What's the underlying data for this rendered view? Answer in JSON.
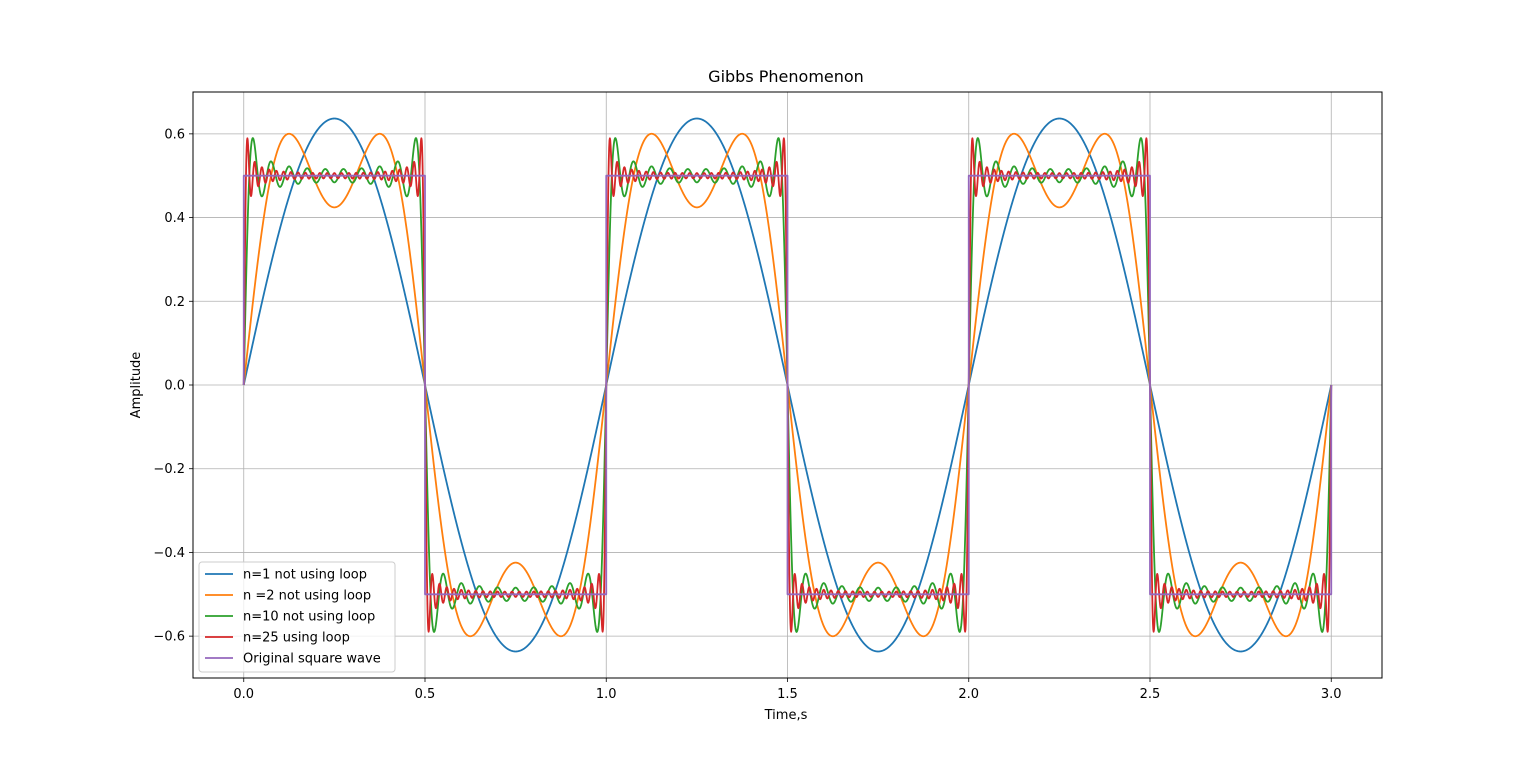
{
  "chart_data": {
    "type": "line",
    "title": "Gibbs Phenomenon",
    "xlabel": "Time,s",
    "ylabel": "Amplitude",
    "xlim": [
      -0.14,
      3.14
    ],
    "ylim": [
      -0.7,
      0.7
    ],
    "grid": true,
    "legend_position": "lower-left",
    "x_ticks": [
      {
        "value": 0.0,
        "label": "0.0"
      },
      {
        "value": 0.5,
        "label": "0.5"
      },
      {
        "value": 1.0,
        "label": "1.0"
      },
      {
        "value": 1.5,
        "label": "1.5"
      },
      {
        "value": 2.0,
        "label": "2.0"
      },
      {
        "value": 2.5,
        "label": "2.5"
      },
      {
        "value": 3.0,
        "label": "3.0"
      }
    ],
    "y_ticks": [
      {
        "value": -0.6,
        "label": "−0.6"
      },
      {
        "value": -0.4,
        "label": "−0.4"
      },
      {
        "value": -0.2,
        "label": "−0.2"
      },
      {
        "value": 0.0,
        "label": "0.0"
      },
      {
        "value": 0.2,
        "label": "0.2"
      },
      {
        "value": 0.4,
        "label": "0.4"
      },
      {
        "value": 0.6,
        "label": "0.6"
      }
    ],
    "period_s": 1.0,
    "amplitude": 0.5,
    "x_range": [
      0,
      3
    ],
    "series": [
      {
        "name": "n=1 not using loop",
        "harmonics": 1,
        "color": "#1f77b4"
      },
      {
        "name": "n =2 not using loop",
        "harmonics": 2,
        "color": "#ff7f0e"
      },
      {
        "name": "n=10 not using loop",
        "harmonics": 10,
        "color": "#2ca02c"
      },
      {
        "name": "n=25 using loop",
        "harmonics": 25,
        "color": "#d62728"
      },
      {
        "name": "Original square wave",
        "harmonics": 0,
        "color": "#9467bd"
      }
    ]
  }
}
